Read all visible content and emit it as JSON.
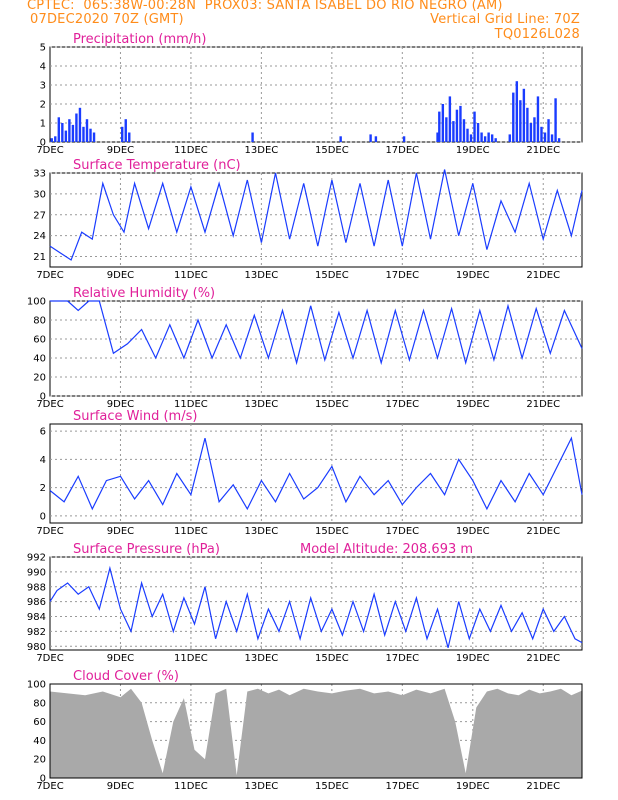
{
  "header": {
    "line1_left": "CPTEC:  065:38W-00:28N  PROX03: SANTA ISABEL DO RIO NEGRO (AM)",
    "line2_left": "07DEC2020 70Z (GMT)",
    "line2_right": "Vertical Grid Line: 70Z",
    "line3_right": "TQ0126L028"
  },
  "colors": {
    "header": "#ff8c1a",
    "title": "#e0209a",
    "series": "#1a3cff",
    "cloud": "#a9a9a9"
  },
  "x_tick_labels": [
    "7DEC",
    "9DEC",
    "11DEC",
    "13DEC",
    "15DEC",
    "17DEC",
    "19DEC",
    "21DEC"
  ],
  "chart_data": [
    {
      "type": "bar",
      "title": "Precipitation (mm/h)",
      "ylim": [
        0,
        5
      ],
      "yticks": [
        0,
        1,
        2,
        3,
        4,
        5
      ],
      "x_range_days": [
        0,
        15.1
      ],
      "x": [
        0.05,
        0.15,
        0.25,
        0.35,
        0.45,
        0.55,
        0.65,
        0.75,
        0.85,
        0.95,
        1.05,
        1.15,
        1.25,
        2.05,
        2.15,
        2.25,
        5.75,
        8.25,
        9.1,
        9.25,
        10.05,
        11.0,
        11.05,
        11.15,
        11.25,
        11.35,
        11.45,
        11.55,
        11.65,
        11.75,
        11.85,
        11.95,
        12.05,
        12.15,
        12.25,
        12.35,
        12.45,
        12.55,
        12.65,
        13.05,
        13.15,
        13.25,
        13.35,
        13.45,
        13.55,
        13.65,
        13.75,
        13.85,
        13.95,
        14.05,
        14.15,
        14.25,
        14.35,
        14.45
      ],
      "values": [
        0.2,
        0.3,
        1.3,
        1.0,
        0.6,
        1.2,
        0.9,
        1.5,
        1.8,
        0.8,
        1.2,
        0.7,
        0.5,
        0.8,
        1.2,
        0.5,
        0.5,
        0.3,
        0.4,
        0.3,
        0.3,
        0.5,
        1.6,
        2.0,
        1.3,
        2.4,
        1.1,
        1.7,
        1.9,
        1.2,
        0.7,
        0.4,
        1.6,
        1.0,
        0.5,
        0.3,
        0.5,
        0.4,
        0.2,
        0.4,
        2.6,
        3.2,
        2.2,
        2.8,
        1.8,
        1.0,
        1.3,
        2.4,
        0.8,
        0.5,
        1.2,
        0.4,
        2.3,
        0.2
      ]
    },
    {
      "type": "line",
      "title": "Surface Temperature (nC)",
      "ylim": [
        19.5,
        33
      ],
      "yticks": [
        21,
        24,
        27,
        30,
        33
      ],
      "x": [
        0,
        0.3,
        0.6,
        0.9,
        1.2,
        1.5,
        1.8,
        2.1,
        2.4,
        2.8,
        3.2,
        3.6,
        4.0,
        4.4,
        4.8,
        5.2,
        5.6,
        6.0,
        6.4,
        6.8,
        7.2,
        7.6,
        8.0,
        8.4,
        8.8,
        9.2,
        9.6,
        10.0,
        10.4,
        10.8,
        11.2,
        11.6,
        12.0,
        12.4,
        12.8,
        13.2,
        13.6,
        14.0,
        14.4,
        14.8,
        15.1
      ],
      "values": [
        22.5,
        21.5,
        20.5,
        24.5,
        23.5,
        31.5,
        27.0,
        24.5,
        31.5,
        25.0,
        31.5,
        24.5,
        31.0,
        24.5,
        31.5,
        24.0,
        32.0,
        23.0,
        33.0,
        23.5,
        31.5,
        22.5,
        32.0,
        23.0,
        31.5,
        22.5,
        32.0,
        22.5,
        33.0,
        23.5,
        33.5,
        24.0,
        31.5,
        22.0,
        29.0,
        24.5,
        31.5,
        23.5,
        30.5,
        24.0,
        30.5
      ]
    },
    {
      "type": "line",
      "title": "Relative Humidity (%)",
      "ylim": [
        0,
        100
      ],
      "yticks": [
        0,
        20,
        40,
        60,
        80,
        100
      ],
      "x": [
        0,
        0.5,
        0.8,
        1.1,
        1.4,
        1.8,
        2.2,
        2.6,
        3.0,
        3.4,
        3.8,
        4.2,
        4.6,
        5.0,
        5.4,
        5.8,
        6.2,
        6.6,
        7.0,
        7.4,
        7.8,
        8.2,
        8.6,
        9.0,
        9.4,
        9.8,
        10.2,
        10.6,
        11.0,
        11.4,
        11.8,
        12.2,
        12.6,
        13.0,
        13.4,
        13.8,
        14.2,
        14.6,
        15.1
      ],
      "values": [
        100,
        100,
        90,
        100,
        100,
        45,
        55,
        70,
        40,
        75,
        40,
        80,
        40,
        75,
        40,
        85,
        40,
        90,
        35,
        95,
        38,
        88,
        40,
        90,
        35,
        90,
        38,
        90,
        40,
        92,
        35,
        90,
        38,
        95,
        40,
        92,
        45,
        90,
        50
      ]
    },
    {
      "type": "line",
      "title": "Surface Wind (m/s)",
      "ylim": [
        -0.5,
        6.5
      ],
      "yticks": [
        0,
        2,
        4,
        6
      ],
      "x": [
        0,
        0.4,
        0.8,
        1.2,
        1.6,
        2.0,
        2.4,
        2.8,
        3.2,
        3.6,
        4.0,
        4.4,
        4.8,
        5.2,
        5.6,
        6.0,
        6.4,
        6.8,
        7.2,
        7.6,
        8.0,
        8.4,
        8.8,
        9.2,
        9.6,
        10.0,
        10.4,
        10.8,
        11.2,
        11.6,
        12.0,
        12.4,
        12.8,
        13.2,
        13.6,
        14.0,
        14.4,
        14.8,
        15.1
      ],
      "values": [
        1.8,
        1.0,
        2.8,
        0.5,
        2.5,
        2.8,
        1.2,
        2.5,
        0.8,
        3.0,
        1.5,
        5.5,
        1.0,
        2.2,
        0.5,
        2.5,
        1.0,
        3.0,
        1.2,
        2.0,
        3.5,
        1.0,
        2.8,
        1.5,
        2.5,
        0.8,
        2.0,
        3.0,
        1.5,
        4.0,
        2.5,
        0.5,
        2.5,
        1.0,
        3.0,
        1.5,
        3.5,
        5.5,
        1.5
      ]
    },
    {
      "type": "line",
      "title": "Surface Pressure (hPa)",
      "annotation": "Model Altitude: 208.693  m",
      "ylim": [
        979.5,
        992
      ],
      "yticks": [
        980,
        982,
        984,
        986,
        988,
        990,
        992
      ],
      "x": [
        0,
        0.2,
        0.5,
        0.8,
        1.1,
        1.4,
        1.7,
        2.0,
        2.3,
        2.6,
        2.9,
        3.2,
        3.5,
        3.8,
        4.1,
        4.4,
        4.7,
        5.0,
        5.3,
        5.6,
        5.9,
        6.2,
        6.5,
        6.8,
        7.1,
        7.4,
        7.7,
        8.0,
        8.3,
        8.6,
        8.9,
        9.2,
        9.5,
        9.8,
        10.1,
        10.4,
        10.7,
        11.0,
        11.3,
        11.6,
        11.9,
        12.2,
        12.5,
        12.8,
        13.1,
        13.4,
        13.7,
        14.0,
        14.3,
        14.6,
        14.9,
        15.1
      ],
      "values": [
        986,
        987.5,
        988.5,
        987,
        988,
        985,
        990.5,
        985,
        982,
        988.5,
        984,
        987,
        982,
        986.5,
        983,
        988,
        981,
        986,
        982,
        987,
        981,
        985,
        982,
        986,
        981,
        986.5,
        982,
        985,
        981.5,
        986,
        982,
        987,
        981.5,
        986,
        982,
        986.5,
        981,
        985,
        979.8,
        986,
        981,
        985,
        982,
        985.5,
        982,
        984.5,
        981,
        985,
        982,
        984,
        981,
        980.5
      ]
    },
    {
      "type": "area",
      "title": "Cloud Cover (%)",
      "ylim": [
        0,
        100
      ],
      "yticks": [
        0,
        20,
        40,
        60,
        80,
        100
      ],
      "x": [
        0,
        0.5,
        1.0,
        1.5,
        2.0,
        2.3,
        2.6,
        2.9,
        3.2,
        3.5,
        3.8,
        4.1,
        4.4,
        4.7,
        5.0,
        5.3,
        5.6,
        5.9,
        6.2,
        6.5,
        6.8,
        7.2,
        7.6,
        8.0,
        8.4,
        8.8,
        9.2,
        9.6,
        10.0,
        10.4,
        10.8,
        11.2,
        11.5,
        11.8,
        12.1,
        12.4,
        12.7,
        13.0,
        13.3,
        13.6,
        13.9,
        14.2,
        14.5,
        14.8,
        15.1
      ],
      "values": [
        92,
        90,
        88,
        92,
        86,
        95,
        80,
        40,
        5,
        60,
        85,
        30,
        20,
        90,
        95,
        3,
        92,
        95,
        90,
        94,
        88,
        95,
        92,
        90,
        93,
        95,
        90,
        92,
        88,
        94,
        90,
        95,
        60,
        5,
        75,
        92,
        95,
        90,
        88,
        94,
        90,
        92,
        95,
        88,
        93
      ]
    }
  ]
}
